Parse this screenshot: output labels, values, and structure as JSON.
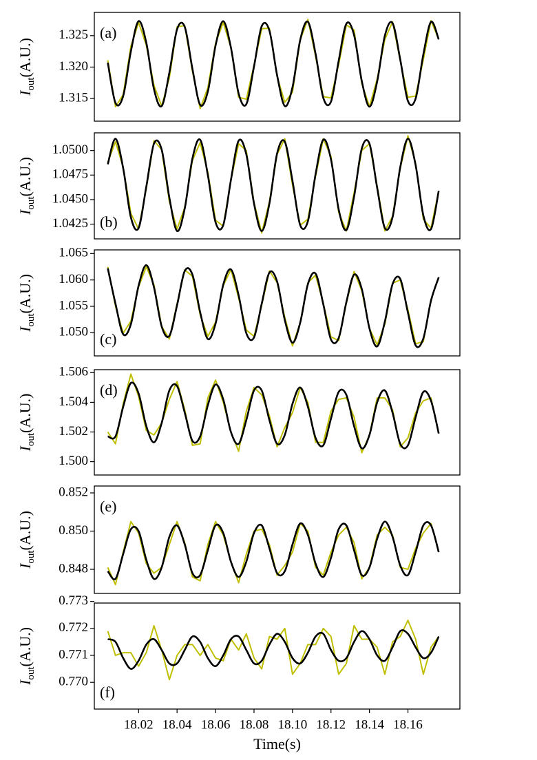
{
  "chart_data": [
    {
      "type": "line",
      "panel_label": "(a)",
      "ylabel": {
        "main": "I",
        "sub": "out",
        "unit": "(A.U.)"
      },
      "xlim": [
        17.997,
        18.187
      ],
      "ylim": [
        1.3114,
        1.3287
      ],
      "yticks": [
        1.315,
        {
          "value": 1.32,
          "label": "1.320"
        },
        1.325
      ],
      "x": [
        18.004,
        18.008,
        18.012,
        18.016,
        18.02,
        18.024,
        18.028,
        18.032,
        18.036,
        18.04,
        18.044,
        18.048,
        18.052,
        18.056,
        18.06,
        18.064,
        18.068,
        18.072,
        18.076,
        18.08,
        18.084,
        18.088,
        18.092,
        18.096,
        18.1,
        18.104,
        18.108,
        18.112,
        18.116,
        18.12,
        18.124,
        18.128,
        18.132,
        18.136,
        18.14,
        18.144,
        18.148,
        18.152,
        18.156,
        18.16,
        18.164,
        18.168,
        18.172,
        18.176
      ],
      "series": [
        {
          "color": "#bfbf00",
          "values": [
            1.3211,
            1.3137,
            1.3156,
            1.3233,
            1.3271,
            1.3235,
            1.3171,
            1.3138,
            1.3183,
            1.3264,
            1.3266,
            1.3193,
            1.3134,
            1.3167,
            1.3238,
            1.3271,
            1.3231,
            1.3152,
            1.3149,
            1.3203,
            1.3261,
            1.3262,
            1.3185,
            1.3144,
            1.316,
            1.3243,
            1.3276,
            1.3217,
            1.3153,
            1.3151,
            1.3204,
            1.3267,
            1.3259,
            1.3174,
            1.3137,
            1.3181,
            1.3244,
            1.3272,
            1.321,
            1.3152,
            1.3154,
            1.3212,
            1.3274,
            1.3244
          ]
        },
        {
          "color": "#000000",
          "values": [
            1.3207,
            1.3143,
            1.3154,
            1.3225,
            1.3273,
            1.3239,
            1.3165,
            1.3138,
            1.3191,
            1.326,
            1.3264,
            1.3197,
            1.314,
            1.3161,
            1.3234,
            1.3273,
            1.3231,
            1.3158,
            1.3141,
            1.3201,
            1.3265,
            1.3258,
            1.3187,
            1.3138,
            1.3168,
            1.3243,
            1.3272,
            1.3221,
            1.3151,
            1.3145,
            1.321,
            1.3269,
            1.3251,
            1.3178,
            1.3137,
            1.3177,
            1.325,
            1.327,
            1.3212,
            1.3146,
            1.315,
            1.322,
            1.3272,
            1.3244
          ]
        }
      ]
    },
    {
      "type": "line",
      "panel_label": "(b)",
      "ylabel": {
        "main": "I",
        "sub": "out",
        "unit": "(A.U.)"
      },
      "xlim": [
        17.997,
        18.187
      ],
      "ylim": [
        1.041,
        1.0518
      ],
      "yticks": [
        {
          "value": 1.0425,
          "label": "1.0425"
        },
        {
          "value": 1.045,
          "label": "1.0450"
        },
        {
          "value": 1.0475,
          "label": "1.0475"
        },
        {
          "value": 1.05,
          "label": "1.0500"
        }
      ],
      "x": [
        18.004,
        18.008,
        18.012,
        18.016,
        18.02,
        18.024,
        18.028,
        18.032,
        18.036,
        18.04,
        18.044,
        18.048,
        18.052,
        18.056,
        18.06,
        18.064,
        18.068,
        18.072,
        18.076,
        18.08,
        18.084,
        18.088,
        18.092,
        18.096,
        18.1,
        18.104,
        18.108,
        18.112,
        18.116,
        18.12,
        18.124,
        18.128,
        18.132,
        18.136,
        18.14,
        18.144,
        18.148,
        18.152,
        18.156,
        18.16,
        18.164,
        18.168,
        18.172,
        18.176
      ],
      "series": [
        {
          "color": "#bfbf00",
          "values": [
            1.0488,
            1.0509,
            1.0483,
            1.0436,
            1.042,
            1.0461,
            1.051,
            1.0501,
            1.0448,
            1.042,
            1.0442,
            1.049,
            1.0508,
            1.0478,
            1.0429,
            1.0423,
            1.047,
            1.0507,
            1.05,
            1.0447,
            1.0416,
            1.0448,
            1.0496,
            1.0512,
            1.0465,
            1.0424,
            1.043,
            1.0474,
            1.0512,
            1.0494,
            1.0437,
            1.0418,
            1.0457,
            1.05,
            1.0507,
            1.0464,
            1.0418,
            1.0433,
            1.0482,
            1.0515,
            1.0487,
            1.043,
            1.0421,
            1.0459
          ]
        },
        {
          "color": "#000000",
          "values": [
            1.0486,
            1.0512,
            1.0482,
            1.0432,
            1.0421,
            1.0463,
            1.0507,
            1.0501,
            1.0452,
            1.0418,
            1.0441,
            1.0492,
            1.0511,
            1.0475,
            1.0427,
            1.0424,
            1.047,
            1.051,
            1.0496,
            1.0446,
            1.0418,
            1.0446,
            1.0497,
            1.0509,
            1.0469,
            1.0424,
            1.0428,
            1.0476,
            1.0511,
            1.0491,
            1.044,
            1.0419,
            1.0453,
            1.0502,
            1.0507,
            1.0462,
            1.0421,
            1.0432,
            1.0483,
            1.0512,
            1.0485,
            1.0434,
            1.042,
            1.0459
          ]
        }
      ]
    },
    {
      "type": "line",
      "panel_label": "(c)",
      "ylabel": {
        "main": "I",
        "sub": "out",
        "unit": "(A.U.)"
      },
      "xlim": [
        17.997,
        18.187
      ],
      "ylim": [
        1.0456,
        1.0657
      ],
      "yticks": [
        {
          "value": 1.05,
          "label": "1.050"
        },
        1.055,
        {
          "value": 1.06,
          "label": "1.060"
        },
        1.065
      ],
      "x": [
        18.004,
        18.008,
        18.012,
        18.016,
        18.02,
        18.024,
        18.028,
        18.032,
        18.036,
        18.04,
        18.044,
        18.048,
        18.052,
        18.056,
        18.06,
        18.064,
        18.068,
        18.072,
        18.076,
        18.08,
        18.084,
        18.088,
        18.092,
        18.096,
        18.1,
        18.104,
        18.108,
        18.112,
        18.116,
        18.12,
        18.124,
        18.128,
        18.132,
        18.136,
        18.14,
        18.144,
        18.148,
        18.152,
        18.156,
        18.16,
        18.164,
        18.168,
        18.172,
        18.176
      ],
      "series": [
        {
          "color": "#bfbf00",
          "values": [
            1.0625,
            1.055,
            1.0499,
            1.0522,
            1.0587,
            1.0625,
            1.0591,
            1.0512,
            1.0488,
            1.0555,
            1.0619,
            1.0607,
            1.0534,
            1.0493,
            1.052,
            1.0589,
            1.062,
            1.0566,
            1.0505,
            1.0493,
            1.0552,
            1.0617,
            1.0595,
            1.0529,
            1.0475,
            1.0519,
            1.0595,
            1.0609,
            1.0556,
            1.0492,
            1.0485,
            1.0556,
            1.0616,
            1.058,
            1.0508,
            1.0477,
            1.0516,
            1.0594,
            1.06,
            1.0543,
            1.0479,
            1.0483,
            1.0563,
            1.0605
          ]
        },
        {
          "color": "#000000",
          "values": [
            1.0622,
            1.0555,
            1.0497,
            1.0516,
            1.0589,
            1.0628,
            1.0586,
            1.0512,
            1.0494,
            1.0552,
            1.0617,
            1.061,
            1.0539,
            1.0488,
            1.0517,
            1.0591,
            1.062,
            1.0571,
            1.0499,
            1.0491,
            1.0555,
            1.0614,
            1.0597,
            1.0524,
            1.0481,
            1.0519,
            1.0592,
            1.0612,
            1.0554,
            1.0487,
            1.049,
            1.0558,
            1.061,
            1.0583,
            1.0508,
            1.0474,
            1.0521,
            1.0592,
            1.0602,
            1.0538,
            1.0476,
            1.0489,
            1.0561,
            1.0605
          ]
        }
      ]
    },
    {
      "type": "line",
      "panel_label": "(d)",
      "ylabel": {
        "main": "I",
        "sub": "out",
        "unit": "(A.U.)"
      },
      "xlim": [
        17.997,
        18.187
      ],
      "ylim": [
        1.4991,
        1.5062
      ],
      "yticks": [
        {
          "value": 1.5,
          "label": "1.500"
        },
        1.502,
        1.504,
        1.506
      ],
      "x": [
        18.004,
        18.008,
        18.012,
        18.016,
        18.02,
        18.024,
        18.028,
        18.032,
        18.036,
        18.04,
        18.044,
        18.048,
        18.052,
        18.056,
        18.06,
        18.064,
        18.068,
        18.072,
        18.076,
        18.08,
        18.084,
        18.088,
        18.092,
        18.096,
        18.1,
        18.104,
        18.108,
        18.112,
        18.116,
        18.12,
        18.124,
        18.128,
        18.132,
        18.136,
        18.14,
        18.144,
        18.148,
        18.152,
        18.156,
        18.16,
        18.164,
        18.168,
        18.172,
        18.176
      ],
      "series": [
        {
          "color": "#bfbf00",
          "values": [
            1.502,
            1.5012,
            1.5039,
            1.5059,
            1.5044,
            1.5021,
            1.5018,
            1.5026,
            1.5042,
            1.5054,
            1.5035,
            1.5011,
            1.5012,
            1.5043,
            1.5055,
            1.504,
            1.502,
            1.5007,
            1.5034,
            1.505,
            1.5045,
            1.5031,
            1.501,
            1.5023,
            1.5033,
            1.505,
            1.504,
            1.5013,
            1.5013,
            1.5034,
            1.5042,
            1.5043,
            1.503,
            1.5006,
            1.5018,
            1.5043,
            1.5043,
            1.5035,
            1.501,
            1.5016,
            1.5033,
            1.5041,
            1.5043,
            1.5019
          ]
        },
        {
          "color": "#000000",
          "values": [
            1.5017,
            1.5017,
            1.5037,
            1.5053,
            1.5046,
            1.5024,
            1.5013,
            1.5026,
            1.5048,
            1.5051,
            1.5033,
            1.5014,
            1.5017,
            1.5038,
            1.5052,
            1.5042,
            1.502,
            1.5012,
            1.5028,
            1.5048,
            1.5048,
            1.5028,
            1.5012,
            1.5018,
            1.5039,
            1.505,
            1.5037,
            1.5016,
            1.5011,
            1.5029,
            1.5047,
            1.5045,
            1.5024,
            1.5009,
            1.5018,
            1.504,
            1.5048,
            1.5033,
            1.5012,
            1.5011,
            1.503,
            1.5047,
            1.5041,
            1.5019
          ]
        }
      ]
    },
    {
      "type": "line",
      "panel_label": "(e)",
      "ylabel": {
        "main": "I",
        "sub": "out",
        "unit": "(A.U.)"
      },
      "xlim": [
        17.997,
        18.187
      ],
      "ylim": [
        0.84674,
        0.85236
      ],
      "yticks": [
        0.848,
        {
          "value": 0.85,
          "label": "0.850"
        },
        0.852
      ],
      "x": [
        18.004,
        18.008,
        18.012,
        18.016,
        18.02,
        18.024,
        18.028,
        18.032,
        18.036,
        18.04,
        18.044,
        18.048,
        18.052,
        18.056,
        18.06,
        18.064,
        18.068,
        18.072,
        18.076,
        18.08,
        18.084,
        18.088,
        18.092,
        18.096,
        18.1,
        18.104,
        18.108,
        18.112,
        18.116,
        18.12,
        18.124,
        18.128,
        18.132,
        18.136,
        18.14,
        18.144,
        18.148,
        18.152,
        18.156,
        18.16,
        18.164,
        18.168,
        18.172,
        18.176
      ],
      "series": [
        {
          "color": "#bfbf00",
          "values": [
            0.8481,
            0.8472,
            0.8489,
            0.8505,
            0.8499,
            0.8483,
            0.8478,
            0.8481,
            0.8493,
            0.8505,
            0.8494,
            0.8476,
            0.8474,
            0.8493,
            0.8505,
            0.8498,
            0.8484,
            0.8473,
            0.8488,
            0.85,
            0.8501,
            0.8493,
            0.8477,
            0.8482,
            0.8489,
            0.8504,
            0.85,
            0.8481,
            0.8477,
            0.8489,
            0.8498,
            0.8502,
            0.8494,
            0.8475,
            0.8481,
            0.8498,
            0.8502,
            0.8498,
            0.8481,
            0.848,
            0.8491,
            0.8499,
            0.8504,
            0.8489
          ]
        },
        {
          "color": "#000000",
          "values": [
            0.8479,
            0.8475,
            0.8488,
            0.8501,
            0.85,
            0.8485,
            0.8475,
            0.8481,
            0.8497,
            0.8503,
            0.8493,
            0.8478,
            0.8477,
            0.849,
            0.8503,
            0.8499,
            0.8484,
            0.8476,
            0.8484,
            0.8499,
            0.8503,
            0.8491,
            0.8478,
            0.8479,
            0.8493,
            0.8504,
            0.8498,
            0.8483,
            0.8476,
            0.8486,
            0.8501,
            0.8503,
            0.849,
            0.8477,
            0.8481,
            0.8496,
            0.8505,
            0.8497,
            0.8482,
            0.8477,
            0.8489,
            0.8503,
            0.8503,
            0.8489
          ]
        }
      ]
    },
    {
      "type": "line",
      "panel_label": "(f)",
      "ylabel": {
        "main": "I",
        "sub": "out",
        "unit": "(A.U.)"
      },
      "xlabel": "Time(s)",
      "xlim": [
        17.997,
        18.187
      ],
      "ylim": [
        0.76901,
        0.77294
      ],
      "yticks": [
        {
          "value": 0.77,
          "label": "0.770"
        },
        0.771,
        0.772,
        0.773
      ],
      "xticks": [
        18.02,
        {
          "value": 18.04,
          "label": "18.04"
        },
        {
          "value": 18.06,
          "label": "18.06"
        },
        {
          "value": 18.08,
          "label": "18.08"
        },
        {
          "value": 18.1,
          "label": "18.10"
        },
        18.12,
        18.14,
        18.16
      ],
      "x": [
        18.004,
        18.008,
        18.012,
        18.016,
        18.02,
        18.024,
        18.028,
        18.032,
        18.036,
        18.04,
        18.044,
        18.048,
        18.052,
        18.056,
        18.06,
        18.064,
        18.068,
        18.072,
        18.076,
        18.08,
        18.084,
        18.088,
        18.092,
        18.096,
        18.1,
        18.104,
        18.108,
        18.112,
        18.116,
        18.12,
        18.124,
        18.128,
        18.132,
        18.136,
        18.14,
        18.144,
        18.148,
        18.152,
        18.156,
        18.16,
        18.164,
        18.168,
        18.172,
        18.176
      ],
      "series": [
        {
          "color": "#bfbf00",
          "values": [
            0.7719,
            0.771,
            0.7711,
            0.7711,
            0.7706,
            0.7711,
            0.7721,
            0.7712,
            0.7701,
            0.771,
            0.7714,
            0.7714,
            0.771,
            0.7714,
            0.7709,
            0.7708,
            0.7716,
            0.7712,
            0.7718,
            0.7709,
            0.7705,
            0.7717,
            0.7716,
            0.772,
            0.7703,
            0.7707,
            0.7714,
            0.7714,
            0.772,
            0.7717,
            0.7703,
            0.7707,
            0.7721,
            0.7716,
            0.7716,
            0.7713,
            0.7703,
            0.7715,
            0.7717,
            0.7723,
            0.7716,
            0.7703,
            0.7713,
            0.7717
          ]
        },
        {
          "color": "#000000",
          "values": [
            0.7716,
            0.7715,
            0.7709,
            0.7705,
            0.7708,
            0.7714,
            0.7716,
            0.7712,
            0.7707,
            0.7707,
            0.7712,
            0.7717,
            0.7715,
            0.7709,
            0.7706,
            0.771,
            0.7716,
            0.7717,
            0.7712,
            0.7707,
            0.7708,
            0.7714,
            0.7718,
            0.7715,
            0.7709,
            0.7707,
            0.7711,
            0.7717,
            0.7718,
            0.7712,
            0.7708,
            0.7709,
            0.7715,
            0.7719,
            0.7716,
            0.771,
            0.7708,
            0.7713,
            0.7719,
            0.7718,
            0.7713,
            0.7709,
            0.7711,
            0.7717
          ]
        }
      ]
    }
  ]
}
